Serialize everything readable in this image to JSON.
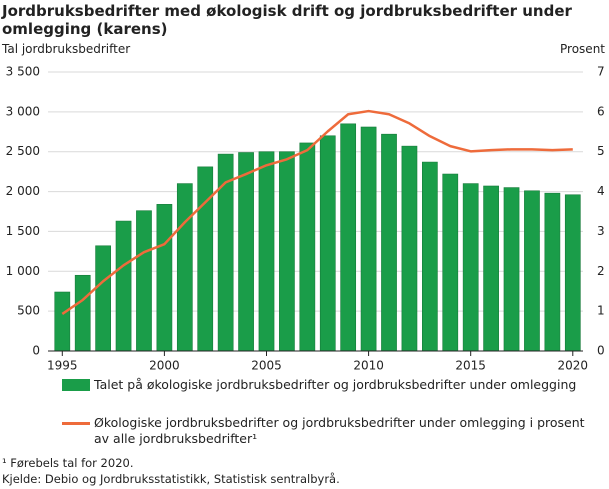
{
  "chart_data": {
    "type": "bar-line",
    "title": "Jordbruksbedrifter med økologisk drift og jordbruksbedrifter under omlegging (karens)",
    "y_label": "Tal jordbruksbedrifter",
    "y2_label": "Prosent",
    "x": [
      1995,
      1996,
      1997,
      1998,
      1999,
      2000,
      2001,
      2002,
      2003,
      2004,
      2005,
      2006,
      2007,
      2008,
      2009,
      2010,
      2011,
      2012,
      2013,
      2014,
      2015,
      2016,
      2017,
      2018,
      2019,
      2020
    ],
    "xlim": [
      1994.3,
      2020.5
    ],
    "xticks": [
      1995,
      2000,
      2005,
      2010,
      2015,
      2020
    ],
    "ylim": [
      0,
      3500
    ],
    "yticks": [
      0,
      500,
      {
        "value": 1000,
        "label": "1 000"
      },
      {
        "value": 1500,
        "label": "1 500"
      },
      {
        "value": 2000,
        "label": "2 000"
      },
      {
        "value": 2500,
        "label": "2 500"
      },
      {
        "value": 3000,
        "label": "3 000"
      },
      {
        "value": 3500,
        "label": "3 500"
      }
    ],
    "y2lim": [
      0,
      7
    ],
    "y2ticks": [
      0,
      1,
      2,
      3,
      4,
      5,
      6,
      7
    ],
    "grid": true,
    "series": [
      {
        "name": "Talet på økologiske jordbruksbedrifter og jordbruksbedrifter under omlegging",
        "type": "bar",
        "color": "#1a9d49",
        "values": [
          740,
          950,
          1320,
          1630,
          1760,
          1840,
          2100,
          2310,
          2470,
          2490,
          2500,
          2500,
          2610,
          2700,
          2850,
          2810,
          2720,
          2570,
          2370,
          2220,
          2100,
          2070,
          2050,
          2010,
          1980,
          1960
        ]
      },
      {
        "name": "Økologiske jordbruksbedrifter og jordbruksbedrifter under omlegging i prosent av alle jordbruksbedrifter¹",
        "type": "line",
        "axis": "y2",
        "color": "#ee6b3b",
        "values": [
          0.93,
          1.28,
          1.75,
          2.15,
          2.48,
          2.68,
          3.23,
          3.73,
          4.23,
          4.44,
          4.66,
          4.81,
          5.04,
          5.51,
          5.94,
          6.02,
          5.94,
          5.71,
          5.39,
          5.14,
          5.01,
          5.04,
          5.06,
          5.06,
          5.04,
          5.06
        ]
      }
    ],
    "footnote": "¹ Førebels tal for 2020.",
    "source": "Kjelde: Debio og Jordbruksstatistikk, Statistisk sentralbyrå."
  }
}
